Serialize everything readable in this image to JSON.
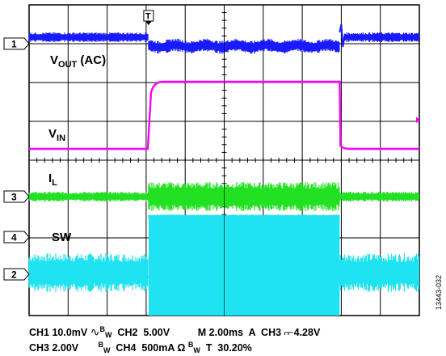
{
  "chart_data": {
    "type": "line",
    "grid": true,
    "divisions": {
      "x": 10,
      "y": 8
    },
    "trigger_marker": "T",
    "channels": [
      {
        "id": "1",
        "color": "#1a1aff",
        "marker_label": "1",
        "trace_label": "V",
        "trace_sub": "OUT",
        "trace_suffix": " (AC)"
      },
      {
        "id": "2",
        "color": "#1fe3f0",
        "marker_label": "2"
      },
      {
        "id": "3",
        "color": "#22e022",
        "marker_label": "3",
        "trace_label": "I",
        "trace_sub": "L"
      },
      {
        "id": "4",
        "color": "#ff00ff",
        "marker_label": "4",
        "trace_label": "SW"
      },
      {
        "id": "in",
        "color": "#ff00ff",
        "trace_label": "V",
        "trace_sub": "IN"
      }
    ],
    "annotations": {
      "vout_label": "V",
      "vout_sub": "OUT",
      "vout_suffix": " (AC)",
      "vin_label": "V",
      "vin_sub": "IN",
      "il_label": "I",
      "il_sub": "L",
      "sw_label": "SW"
    },
    "settings": {
      "line1": [
        {
          "text": "CH1 10.0mV "
        },
        {
          "text": "∿",
          "sym": true
        },
        {
          "text": "B",
          "sup": true
        },
        {
          "text": "W",
          "sub": true
        },
        {
          "text": "  CH2  5.00V"
        },
        {
          "text": "          M 2.00ms  A  CH3 "
        },
        {
          "text": "⌐⌐",
          "edge": true
        },
        {
          "text": " 4.28V"
        }
      ],
      "line2": [
        {
          "text": "CH3 2.00V       "
        },
        {
          "text": "B",
          "sup": true
        },
        {
          "text": "W",
          "sub": true
        },
        {
          "text": "  CH4  500mA Ω "
        },
        {
          "text": "B",
          "sup": true
        },
        {
          "text": "W",
          "sub": true
        },
        {
          "text": "  T  30.20%"
        }
      ]
    },
    "figure_id": "13443-032"
  }
}
